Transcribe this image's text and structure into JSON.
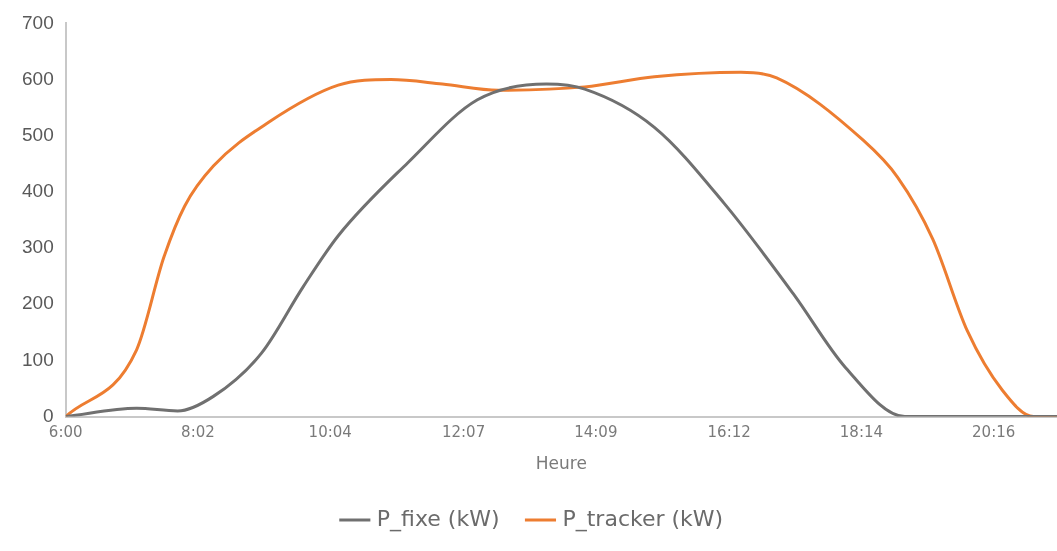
{
  "chart_data": {
    "type": "line",
    "xlabel": "Heure",
    "xlim": [
      6,
      21.24
    ],
    "xticks": [
      {
        "value": 6,
        "label": "6:00"
      },
      {
        "value": 8.0333,
        "label": "8:02"
      },
      {
        "value": 10.0667,
        "label": "10:04"
      },
      {
        "value": 12.1167,
        "label": "12:07"
      },
      {
        "value": 14.15,
        "label": "14:09"
      },
      {
        "value": 16.2,
        "label": "16:12"
      },
      {
        "value": 18.2333,
        "label": "18:14"
      },
      {
        "value": 20.2667,
        "label": "20:16"
      }
    ],
    "ylim": [
      0,
      700
    ],
    "yticks": [
      0,
      100,
      200,
      300,
      400,
      500,
      600,
      700
    ],
    "grid": false,
    "legend": "bottom",
    "marker": "none",
    "line_style": "solid",
    "series": [
      {
        "name": "P_fixe (kW)",
        "color": "#707070",
        "x": [
          6,
          7.09,
          7.72,
          8.27,
          9.01,
          9.65,
          10.19,
          11.26,
          12.33,
          13.39,
          13.98,
          15.05,
          16.12,
          17.19,
          17.99,
          18.9,
          21.24
        ],
        "values": [
          0,
          15,
          10,
          36,
          113,
          231,
          322,
          452,
          564,
          592,
          583,
          515,
          380,
          218,
          87,
          0,
          0
        ]
      },
      {
        "name": "P_tracker (kW)",
        "color": "#ed7d31",
        "x": [
          6,
          7.09,
          7.51,
          7.83,
          8.27,
          9.12,
          10.19,
          11.0,
          11.79,
          12.65,
          13.98,
          15.05,
          16.38,
          16.93,
          18.26,
          18.79,
          19.33,
          19.86,
          20.4,
          20.88,
          21.24
        ],
        "values": [
          0,
          119,
          284,
          375,
          446,
          524,
          590,
          600,
          592,
          581,
          587,
          605,
          613,
          603,
          492,
          426,
          316,
          153,
          47,
          0,
          0
        ]
      }
    ]
  }
}
